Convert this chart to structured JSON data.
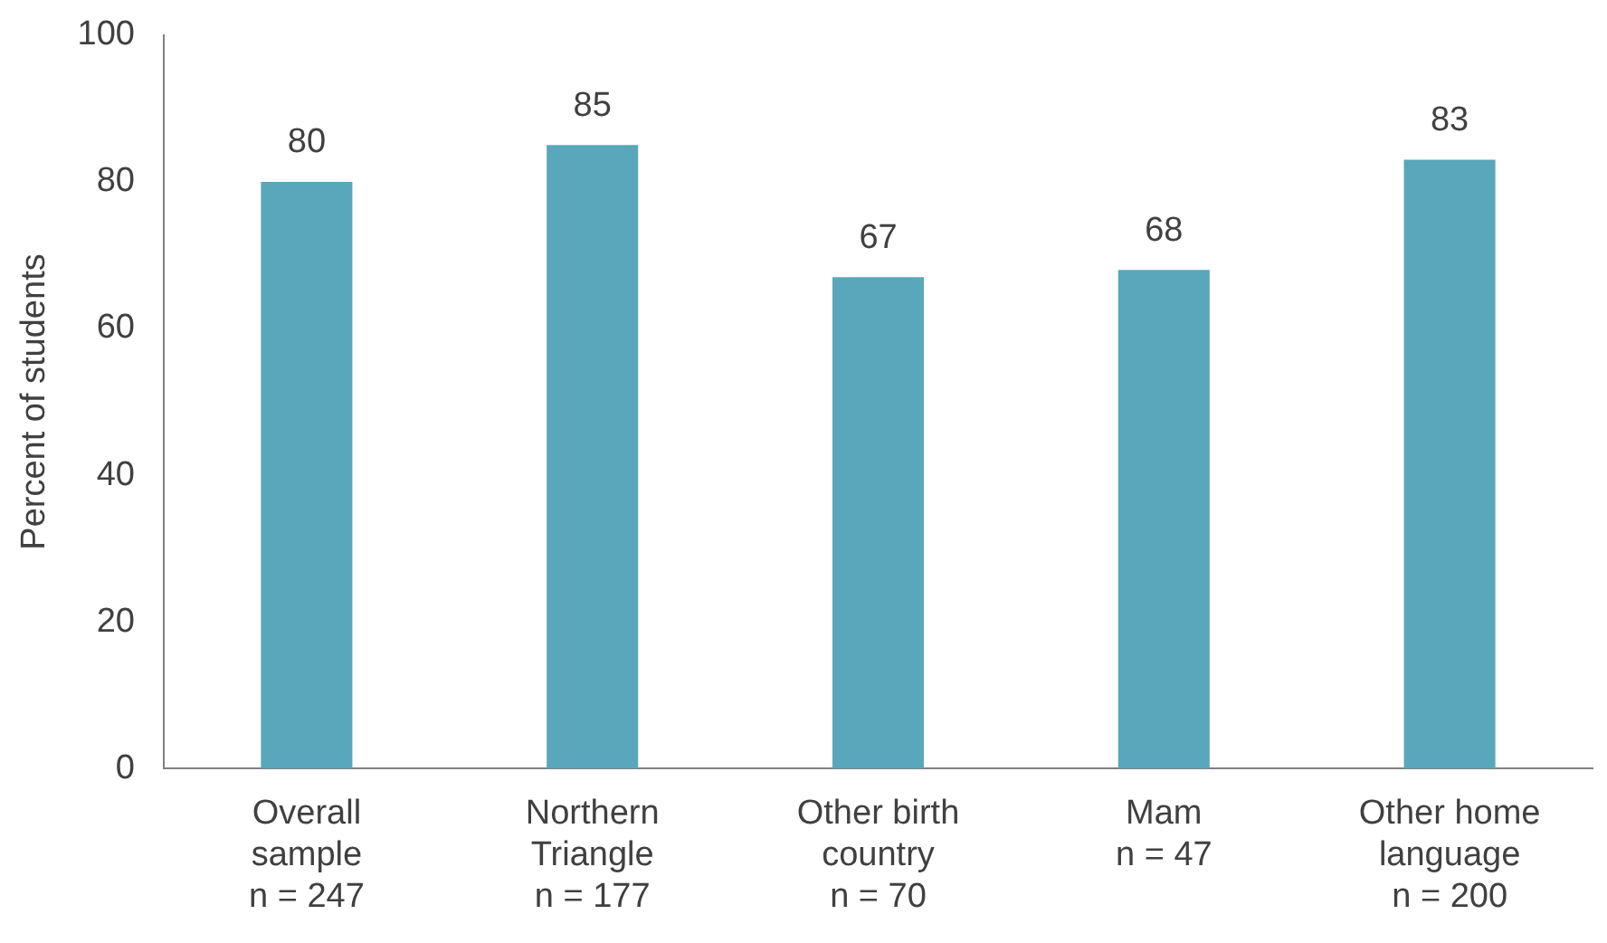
{
  "chart_data": {
    "type": "bar",
    "ylabel": "Percent of students",
    "categories": [
      "Overall\nsample\nn = 247",
      "Northern\nTriangle\nn = 177",
      "Other birth\ncountry\nn = 70",
      "Mam\nn = 47",
      "Other home\nlanguage\nn = 200"
    ],
    "values": [
      80,
      85,
      67,
      68,
      83
    ],
    "color": "#59a7bb",
    "ylim": [
      0,
      100
    ],
    "yticks": [
      0,
      20,
      40,
      60,
      80,
      100
    ],
    "grid": false,
    "legend": false,
    "data_labels": true
  }
}
